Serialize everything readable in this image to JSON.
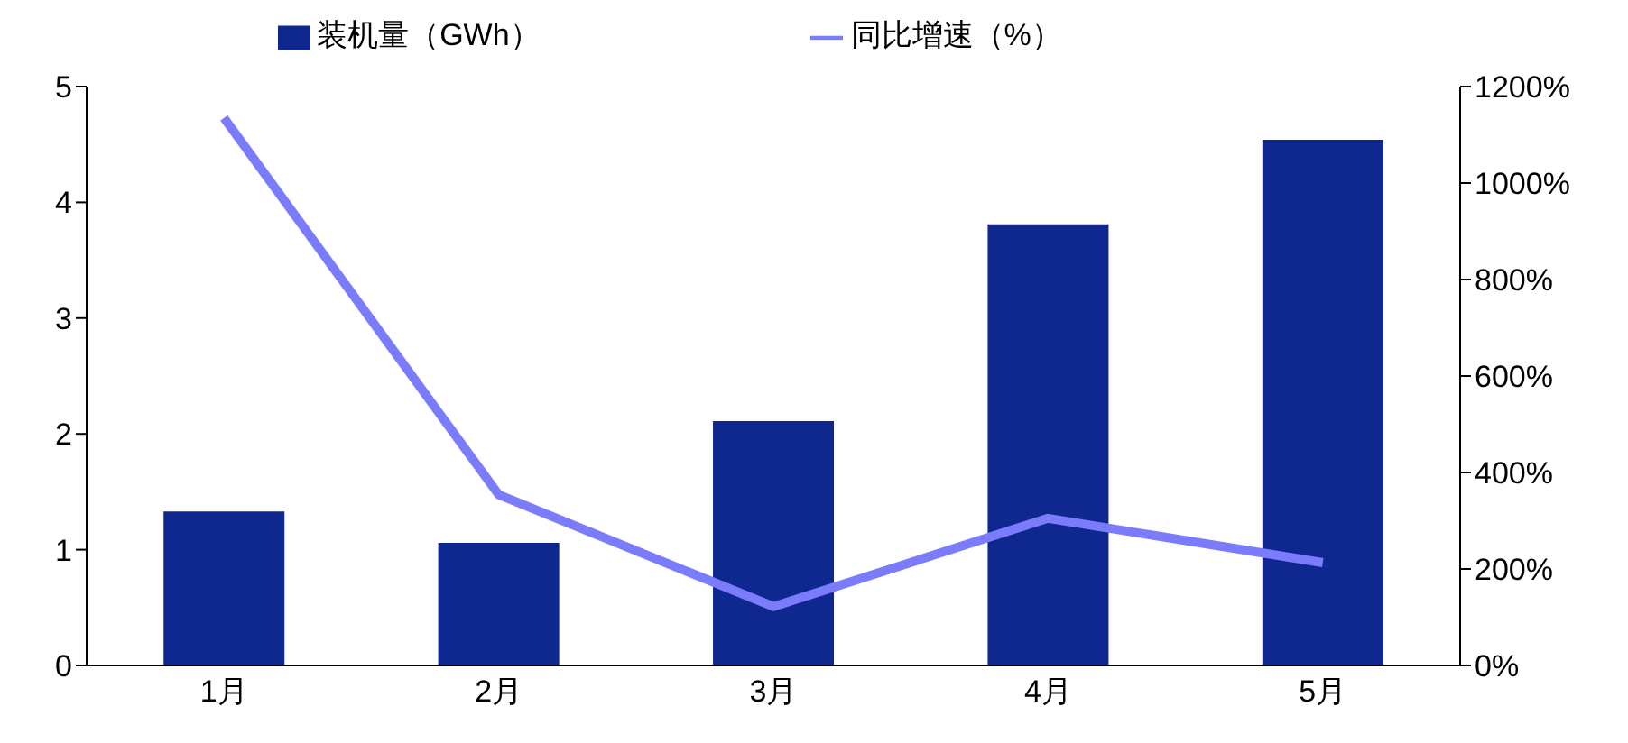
{
  "chart_data": {
    "type": "bar",
    "categories": [
      "1月",
      "2月",
      "3月",
      "4月",
      "5月"
    ],
    "series": [
      {
        "name": "装机量（GWh）",
        "color": "#0f2890",
        "values": [
          1.33,
          1.06,
          2.11,
          3.81,
          4.54
        ]
      },
      {
        "name": "同比增速（%）",
        "type": "line",
        "axis": "y2",
        "color": "#7b7cfb",
        "values": [
          1135,
          354,
          122,
          305,
          213
        ]
      }
    ],
    "ylim": [
      0,
      5
    ],
    "yticks": [
      0,
      1,
      2,
      3,
      4,
      5
    ],
    "y2lim": [
      0,
      1200
    ],
    "y2ticks": [
      {
        "value": 0,
        "label": "0%"
      },
      {
        "value": 200,
        "label": "200%"
      },
      {
        "value": 400,
        "label": "400%"
      },
      {
        "value": 600,
        "label": "600%"
      },
      {
        "value": 800,
        "label": "800%"
      },
      {
        "value": 1000,
        "label": "1000%"
      },
      {
        "value": 1200,
        "label": "1200%"
      }
    ],
    "grid": false,
    "legend": "top",
    "marker": "none"
  }
}
